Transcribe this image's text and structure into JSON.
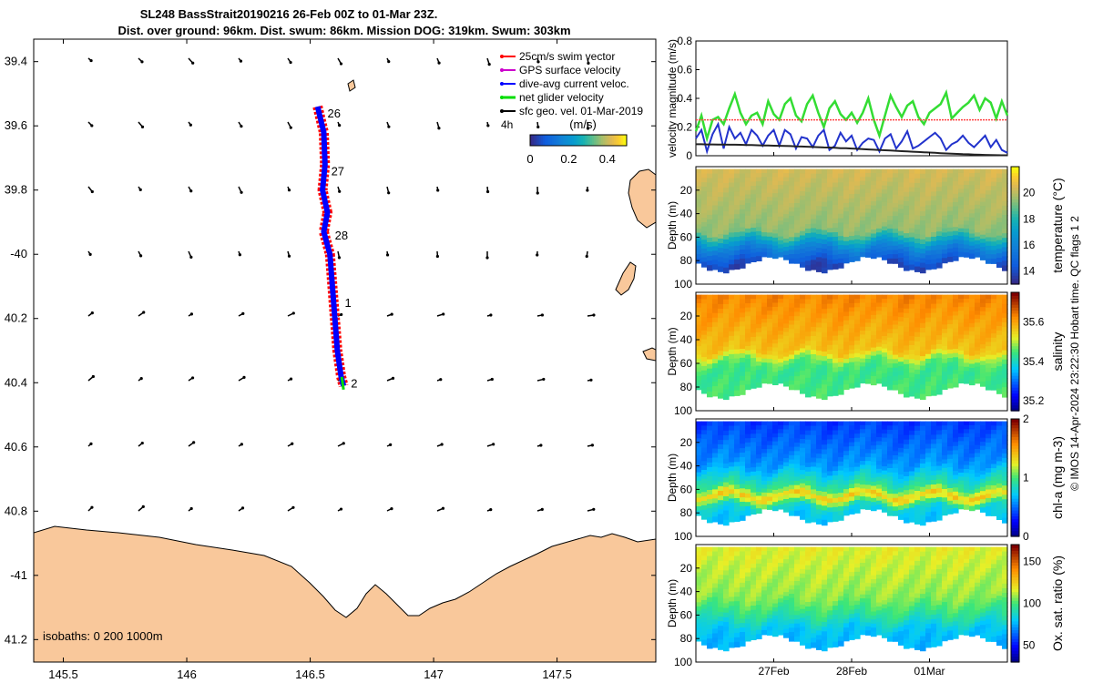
{
  "colors": {
    "land": "#f9c89b",
    "swim": "#ff0000",
    "gps": "#cc00cc",
    "dive_avg": "#0000ff",
    "net": "#00dd00",
    "sfc_geo": "#000000",
    "vel_green": "#33dd33",
    "vel_red": "#ff4444",
    "vel_blue": "#2233cc",
    "vel_black": "#222222"
  },
  "title": {
    "line1": "SL248 BassStrait20190216 26-Feb 00Z to 01-Mar 23Z.",
    "line2": "Dist. over ground: 96km. Dist. swum: 86km. Mission DOG: 319km. Swum: 303km"
  },
  "map": {
    "xlim": [
      145.38,
      147.9
    ],
    "ylim": [
      -41.27,
      -39.33
    ],
    "xticks": [
      {
        "v": 145.5,
        "label": "145.5"
      },
      {
        "v": 146,
        "label": "146"
      },
      {
        "v": 146.5,
        "label": "146.5"
      },
      {
        "v": 147,
        "label": "147"
      },
      {
        "v": 147.5,
        "label": "147.5"
      }
    ],
    "yticks": [
      {
        "v": -39.4,
        "label": "39.4"
      },
      {
        "v": -39.6,
        "label": "39.6"
      },
      {
        "v": -39.8,
        "label": "39.8"
      },
      {
        "v": -40.0,
        "label": "-40"
      },
      {
        "v": -40.2,
        "label": "40.2"
      },
      {
        "v": -40.4,
        "label": "40.4"
      },
      {
        "v": -40.6,
        "label": "40.6"
      },
      {
        "v": -40.8,
        "label": "40.8"
      },
      {
        "v": -41.0,
        "label": "-41"
      },
      {
        "v": -41.2,
        "label": "41.2"
      }
    ],
    "track": [
      [
        146.53,
        -39.54
      ],
      [
        146.555,
        -39.62
      ],
      [
        146.56,
        -39.72
      ],
      [
        146.55,
        -39.8
      ],
      [
        146.57,
        -39.87
      ],
      [
        146.555,
        -39.93
      ],
      [
        146.58,
        -40.0
      ],
      [
        146.59,
        -40.1
      ],
      [
        146.6,
        -40.2
      ],
      [
        146.61,
        -40.3
      ],
      [
        146.625,
        -40.38
      ],
      [
        146.635,
        -40.41
      ]
    ],
    "day_labels": [
      {
        "label": "26",
        "lon": 146.57,
        "lat": -39.56
      },
      {
        "label": "27",
        "lon": 146.585,
        "lat": -39.74
      },
      {
        "label": "28",
        "lon": 146.6,
        "lat": -39.94
      },
      {
        "label": "1",
        "lon": 146.64,
        "lat": -40.15
      },
      {
        "label": "2",
        "lon": 146.665,
        "lat": -40.4
      }
    ],
    "legend": [
      {
        "label": "25cm/s swim vector",
        "color": "#ff0000"
      },
      {
        "label": "GPS surface velocity",
        "color": "#cc00cc"
      },
      {
        "label": "dive-avg current veloc.",
        "color": "#0000ff"
      },
      {
        "label": "net glider velocity",
        "color": "#00dd00"
      },
      {
        "label": "sfc geo. vel. 01-Mar-2019",
        "color": "#000000"
      }
    ],
    "duration_note": "4h",
    "colorbar": {
      "title": "(m/s)",
      "ticks": [
        "0",
        "0.2",
        "0.4"
      ],
      "range": [
        0,
        0.5
      ]
    },
    "isobaths": "isobaths: 0   200  1000m"
  },
  "chart_data": [
    {
      "type": "line",
      "ylabel": "velocity magnitude (m/s)",
      "ylim": [
        0,
        0.8
      ],
      "yticks": [
        "0",
        "0.2",
        "0.4",
        "0.6",
        "0.8"
      ],
      "x_range_days": [
        0,
        4
      ],
      "series": [
        {
          "color": "#33dd33",
          "values": [
            0.17,
            0.28,
            0.12,
            0.25,
            0.27,
            0.22,
            0.33,
            0.43,
            0.3,
            0.22,
            0.28,
            0.3,
            0.22,
            0.38,
            0.29,
            0.25,
            0.36,
            0.4,
            0.28,
            0.24,
            0.36,
            0.42,
            0.3,
            0.2,
            0.33,
            0.38,
            0.29,
            0.25,
            0.3,
            0.23,
            0.3,
            0.4,
            0.25,
            0.14,
            0.28,
            0.42,
            0.34,
            0.27,
            0.35,
            0.38,
            0.27,
            0.22,
            0.3,
            0.33,
            0.36,
            0.44,
            0.26,
            0.3,
            0.34,
            0.37,
            0.42,
            0.32,
            0.4,
            0.37,
            0.26,
            0.38,
            0.28
          ]
        },
        {
          "color": "#ff4444",
          "values": [
            0.25,
            0.25,
            0.25,
            0.25,
            0.25,
            0.25,
            0.25,
            0.25,
            0.25,
            0.25,
            0.25,
            0.25,
            0.25,
            0.25,
            0.25,
            0.25,
            0.25,
            0.25,
            0.25,
            0.25,
            0.25,
            0.25,
            0.25,
            0.25,
            0.25,
            0.25,
            0.25,
            0.25,
            0.25,
            0.25,
            0.25,
            0.25,
            0.25,
            0.25,
            0.25,
            0.25,
            0.25,
            0.25,
            0.25,
            0.25,
            0.25,
            0.25,
            0.25,
            0.25,
            0.25,
            0.25,
            0.25,
            0.25,
            0.25,
            0.25,
            0.25,
            0.25,
            0.25,
            0.25,
            0.25,
            0.25,
            0.25
          ]
        },
        {
          "color": "#2233cc",
          "values": [
            0.12,
            0.18,
            0.03,
            0.15,
            0.22,
            0.05,
            0.2,
            0.12,
            0.16,
            0.08,
            0.18,
            0.14,
            0.07,
            0.14,
            0.18,
            0.07,
            0.18,
            0.15,
            0.05,
            0.13,
            0.12,
            0.06,
            0.14,
            0.18,
            0.04,
            0.07,
            0.16,
            0.1,
            0.14,
            0.04,
            0.09,
            0.12,
            0.11,
            0.03,
            0.12,
            0.15,
            0.05,
            0.1,
            0.17,
            0.05,
            0.07,
            0.1,
            0.13,
            0.16,
            0.12,
            0.04,
            0.08,
            0.1,
            0.14,
            0.09,
            0.06,
            0.1,
            0.14,
            0.06,
            0.11,
            0.04,
            0.02
          ]
        },
        {
          "color": "#222222",
          "values": [
            0.08,
            0.08,
            0.079,
            0.079,
            0.078,
            0.078,
            0.077,
            0.077,
            0.076,
            0.075,
            0.074,
            0.073,
            0.072,
            0.071,
            0.07,
            0.069,
            0.068,
            0.067,
            0.065,
            0.064,
            0.063,
            0.061,
            0.06,
            0.058,
            0.057,
            0.055,
            0.053,
            0.052,
            0.05,
            0.048,
            0.046,
            0.044,
            0.042,
            0.04,
            0.038,
            0.036,
            0.034,
            0.032,
            0.03,
            0.028,
            0.026,
            0.024,
            0.022,
            0.02,
            0.018,
            0.016,
            0.014,
            0.013,
            0.011,
            0.01,
            0.008,
            0.007,
            0.006,
            0.005,
            0.004,
            0.003,
            0.003
          ]
        }
      ]
    },
    {
      "type": "heatmap",
      "ylabel": "Depth (m)",
      "cbar_label": "temperature (°C)",
      "cbar_ticks": [
        "14",
        "16",
        "18",
        "20"
      ],
      "cbar_range": [
        13,
        22
      ],
      "yticks": [
        "20",
        "40",
        "60",
        "80",
        "100"
      ],
      "ylim": [
        0,
        100
      ],
      "profile": [
        [
          0,
          20.5
        ],
        [
          55,
          19.5
        ],
        [
          63,
          17.5
        ],
        [
          70,
          15.8
        ],
        [
          85,
          13.6
        ]
      ]
    },
    {
      "type": "heatmap",
      "ylabel": "Depth (m)",
      "cbar_label": "salinity",
      "cbar_ticks": [
        "35.2",
        "35.4",
        "35.6"
      ],
      "cbar_range": [
        35.15,
        35.75
      ],
      "yticks": [
        "20",
        "40",
        "60",
        "80",
        "100"
      ],
      "ylim": [
        0,
        100
      ],
      "profile": [
        [
          0,
          35.64
        ],
        [
          50,
          35.57
        ],
        [
          58,
          35.47
        ],
        [
          66,
          35.44
        ],
        [
          85,
          35.45
        ]
      ]
    },
    {
      "type": "heatmap",
      "ylabel": "Depth (m)",
      "cbar_label": "chl-a (mg m-3)",
      "cbar_ticks": [
        "0",
        "1",
        "2"
      ],
      "cbar_range": [
        0,
        2
      ],
      "yticks": [
        "20",
        "40",
        "60",
        "80",
        "100"
      ],
      "ylim": [
        0,
        100
      ],
      "profile": [
        [
          0,
          0.35
        ],
        [
          40,
          0.6
        ],
        [
          58,
          0.95
        ],
        [
          66,
          1.4
        ],
        [
          75,
          0.8
        ],
        [
          85,
          0.7
        ]
      ]
    },
    {
      "type": "heatmap",
      "ylabel": "Depth (m)",
      "cbar_label": "Ox. sat. ratio (%)",
      "cbar_ticks": [
        "50",
        "100",
        "150"
      ],
      "cbar_range": [
        30,
        170
      ],
      "yticks": [
        "20",
        "40",
        "60",
        "80",
        "100"
      ],
      "ylim": [
        0,
        100
      ],
      "profile": [
        [
          0,
          118
        ],
        [
          45,
          108
        ],
        [
          60,
          95
        ],
        [
          72,
          80
        ],
        [
          85,
          76
        ]
      ]
    }
  ],
  "date_ticks": [
    {
      "label": "27Feb",
      "day": 1.0
    },
    {
      "label": "28Feb",
      "day": 2.0
    },
    {
      "label": "01Mar",
      "day": 3.0
    }
  ],
  "side_note": "© IMOS 14-Apr-2024 23:22:30 Hobart time. QC flags 1  2"
}
